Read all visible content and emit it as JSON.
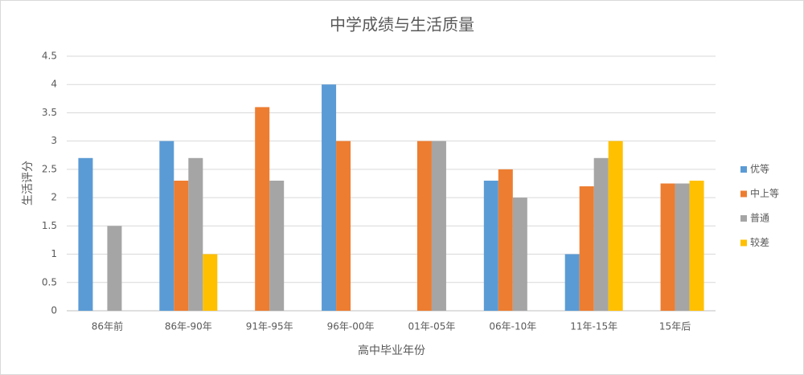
{
  "chart_data": {
    "type": "bar",
    "title": "中学成绩与生活质量",
    "x_label": "高中毕业年份",
    "y_label": "生活评分",
    "categories": [
      "86年前",
      "86年-90年",
      "91年-95年",
      "96年-00年",
      "01年-05年",
      "06年-10年",
      "11年-15年",
      "15年后"
    ],
    "series": [
      {
        "name": "优等",
        "color": "#5b9bd5",
        "values": [
          2.7,
          3,
          null,
          4,
          null,
          2.3,
          1,
          null
        ]
      },
      {
        "name": "中上等",
        "color": "#ed7d31",
        "values": [
          null,
          2.3,
          3.6,
          3,
          3,
          2.5,
          2.2,
          2.25
        ]
      },
      {
        "name": "普通",
        "color": "#a5a5a5",
        "values": [
          1.5,
          2.7,
          2.3,
          null,
          3,
          2,
          2.7,
          2.25
        ]
      },
      {
        "name": "较差",
        "color": "#ffc000",
        "values": [
          null,
          1,
          null,
          null,
          null,
          null,
          3,
          2.3
        ]
      }
    ],
    "ylim": [
      0,
      4.5
    ],
    "yticks": [
      0,
      0.5,
      1,
      1.5,
      2,
      2.5,
      3,
      3.5,
      4,
      4.5
    ],
    "grid": true,
    "legend": "right"
  }
}
